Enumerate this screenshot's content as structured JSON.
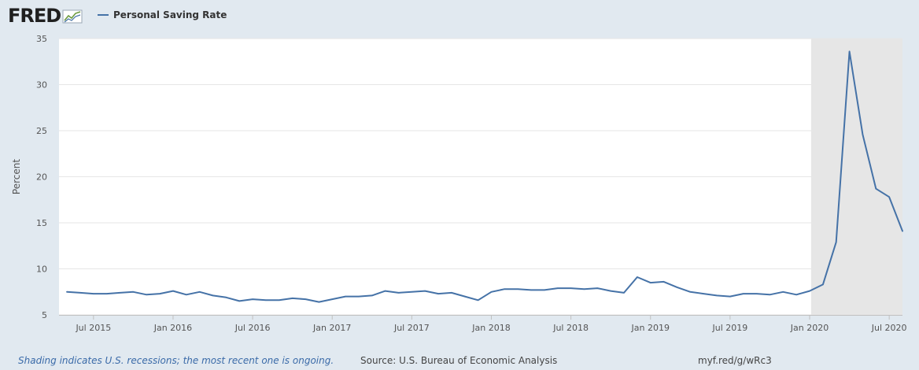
{
  "logo": {
    "text": "FRED",
    "mark_icon": "line-chart-icon"
  },
  "legend": {
    "series_label": "Personal Saving Rate"
  },
  "footer": {
    "note": "Shading indicates U.S. recessions; the most recent one is ongoing.",
    "source": "Source: U.S. Bureau of Economic Analysis",
    "link": "myf.red/g/wRc3"
  },
  "colors": {
    "page_background": "#e1e9f0",
    "plot_background": "#ffffff",
    "series_line": "#4572a7",
    "recession_shade": "#e6e6e6",
    "gridline": "#e6e6e6"
  },
  "chart_data": {
    "type": "line",
    "title": "",
    "xlabel": "",
    "ylabel": "Percent",
    "ylim": [
      5,
      35
    ],
    "y_ticks": [
      5,
      10,
      15,
      20,
      25,
      30,
      35
    ],
    "grid": true,
    "legend_position": "top-left",
    "x_tick_labels": [
      {
        "date": "2015-07",
        "label": "Jul 2015"
      },
      {
        "date": "2016-01",
        "label": "Jan 2016"
      },
      {
        "date": "2016-07",
        "label": "Jul 2016"
      },
      {
        "date": "2017-01",
        "label": "Jan 2017"
      },
      {
        "date": "2017-07",
        "label": "Jul 2017"
      },
      {
        "date": "2018-01",
        "label": "Jan 2018"
      },
      {
        "date": "2018-07",
        "label": "Jul 2018"
      },
      {
        "date": "2019-01",
        "label": "Jan 2019"
      },
      {
        "date": "2019-07",
        "label": "Jul 2019"
      },
      {
        "date": "2020-01",
        "label": "Jan 2020"
      },
      {
        "date": "2020-07",
        "label": "Jul 2020"
      }
    ],
    "recession": {
      "start": "2020-02",
      "end": "2020-08"
    },
    "series": [
      {
        "name": "Personal Saving Rate",
        "x": [
          "2015-05",
          "2015-06",
          "2015-07",
          "2015-08",
          "2015-09",
          "2015-10",
          "2015-11",
          "2015-12",
          "2016-01",
          "2016-02",
          "2016-03",
          "2016-04",
          "2016-05",
          "2016-06",
          "2016-07",
          "2016-08",
          "2016-09",
          "2016-10",
          "2016-11",
          "2016-12",
          "2017-01",
          "2017-02",
          "2017-03",
          "2017-04",
          "2017-05",
          "2017-06",
          "2017-07",
          "2017-08",
          "2017-09",
          "2017-10",
          "2017-11",
          "2017-12",
          "2018-01",
          "2018-02",
          "2018-03",
          "2018-04",
          "2018-05",
          "2018-06",
          "2018-07",
          "2018-08",
          "2018-09",
          "2018-10",
          "2018-11",
          "2018-12",
          "2019-01",
          "2019-02",
          "2019-03",
          "2019-04",
          "2019-05",
          "2019-06",
          "2019-07",
          "2019-08",
          "2019-09",
          "2019-10",
          "2019-11",
          "2019-12",
          "2020-01",
          "2020-02",
          "2020-03",
          "2020-04",
          "2020-05",
          "2020-06",
          "2020-07",
          "2020-08"
        ],
        "values": [
          7.5,
          7.4,
          7.3,
          7.3,
          7.4,
          7.5,
          7.2,
          7.3,
          7.6,
          7.2,
          7.5,
          7.1,
          6.9,
          6.5,
          6.7,
          6.6,
          6.6,
          6.8,
          6.7,
          6.4,
          6.7,
          7.0,
          7.0,
          7.1,
          7.6,
          7.4,
          7.5,
          7.6,
          7.3,
          7.4,
          7.0,
          6.6,
          7.5,
          7.8,
          7.8,
          7.7,
          7.7,
          7.9,
          7.9,
          7.8,
          7.9,
          7.6,
          7.4,
          9.1,
          8.5,
          8.6,
          8.0,
          7.5,
          7.3,
          7.1,
          7.0,
          7.3,
          7.3,
          7.2,
          7.5,
          7.2,
          7.6,
          8.3,
          12.9,
          33.6,
          24.6,
          18.7,
          17.8,
          14.1
        ]
      }
    ]
  }
}
